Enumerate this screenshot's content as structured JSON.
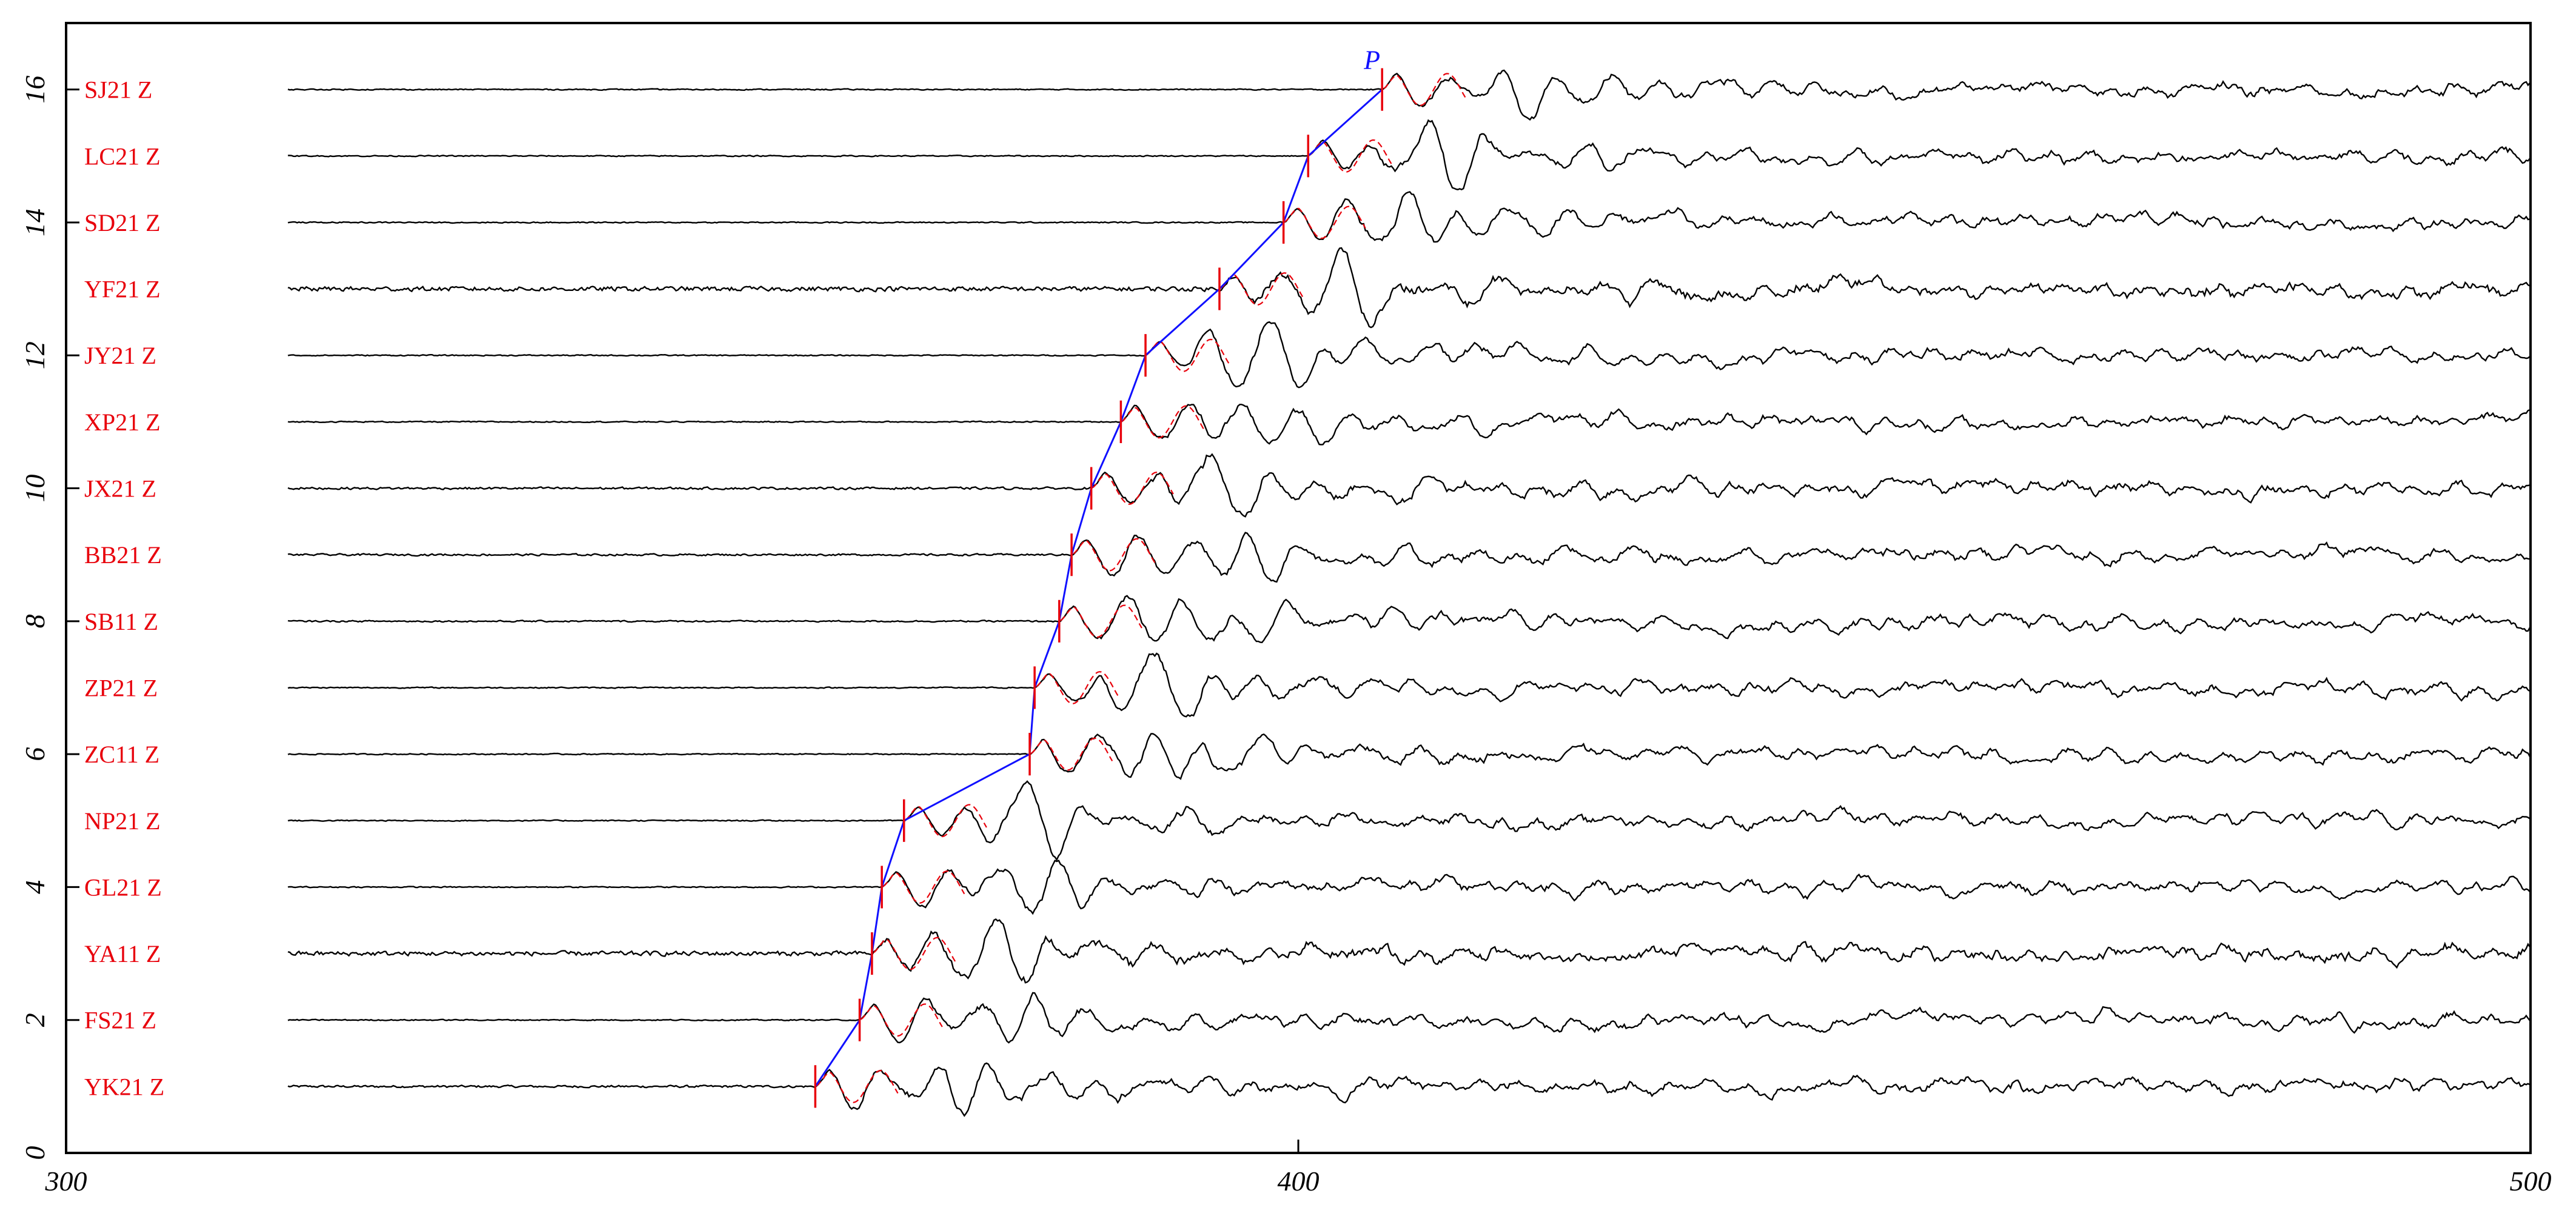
{
  "chart_data": {
    "type": "line",
    "title": "",
    "xlabel": "",
    "ylabel": "",
    "xlim": [
      300,
      500
    ],
    "ylim": [
      0,
      17
    ],
    "x_ticks": [
      "300",
      "400",
      "500"
    ],
    "y_ticks": [
      "0",
      "2",
      "4",
      "6",
      "8",
      "10",
      "12",
      "14",
      "16"
    ],
    "trace_start_x": 318,
    "trace_end_x": 500,
    "colors": {
      "axes": "#000000",
      "trace": "#000000",
      "station_label": "#e8000b",
      "pick_marker": "#e8000b",
      "waveform_fit": "#e8000b",
      "travel_time_curve": "#1010ff"
    },
    "phase_label": "P",
    "stations": [
      {
        "name": "YK21 Z",
        "offset": 1,
        "pick_time": 360.8,
        "noise": 0.06
      },
      {
        "name": "FS21 Z",
        "offset": 2,
        "pick_time": 364.4,
        "noise": 0.03
      },
      {
        "name": "YA11 Z",
        "offset": 3,
        "pick_time": 365.4,
        "noise": 0.12
      },
      {
        "name": "GL21 Z",
        "offset": 4,
        "pick_time": 366.2,
        "noise": 0.03
      },
      {
        "name": "NP21 Z",
        "offset": 5,
        "pick_time": 368.0,
        "noise": 0.03
      },
      {
        "name": "ZC11 Z",
        "offset": 6,
        "pick_time": 378.2,
        "noise": 0.03
      },
      {
        "name": "ZP21 Z",
        "offset": 7,
        "pick_time": 378.6,
        "noise": 0.03
      },
      {
        "name": "SB11 Z",
        "offset": 8,
        "pick_time": 380.6,
        "noise": 0.04
      },
      {
        "name": "BB21 Z",
        "offset": 9,
        "pick_time": 381.6,
        "noise": 0.05
      },
      {
        "name": "JX21 Z",
        "offset": 10,
        "pick_time": 383.2,
        "noise": 0.06
      },
      {
        "name": "XP21 Z",
        "offset": 11,
        "pick_time": 385.6,
        "noise": 0.03
      },
      {
        "name": "JY21 Z",
        "offset": 12,
        "pick_time": 387.6,
        "noise": 0.03
      },
      {
        "name": "YF21 Z",
        "offset": 13,
        "pick_time": 393.6,
        "noise": 0.12
      },
      {
        "name": "SD21 Z",
        "offset": 14,
        "pick_time": 398.8,
        "noise": 0.03
      },
      {
        "name": "LC21 Z",
        "offset": 15,
        "pick_time": 400.8,
        "noise": 0.03
      },
      {
        "name": "SJ21 Z",
        "offset": 16,
        "pick_time": 406.8,
        "noise": 0.03
      }
    ]
  }
}
